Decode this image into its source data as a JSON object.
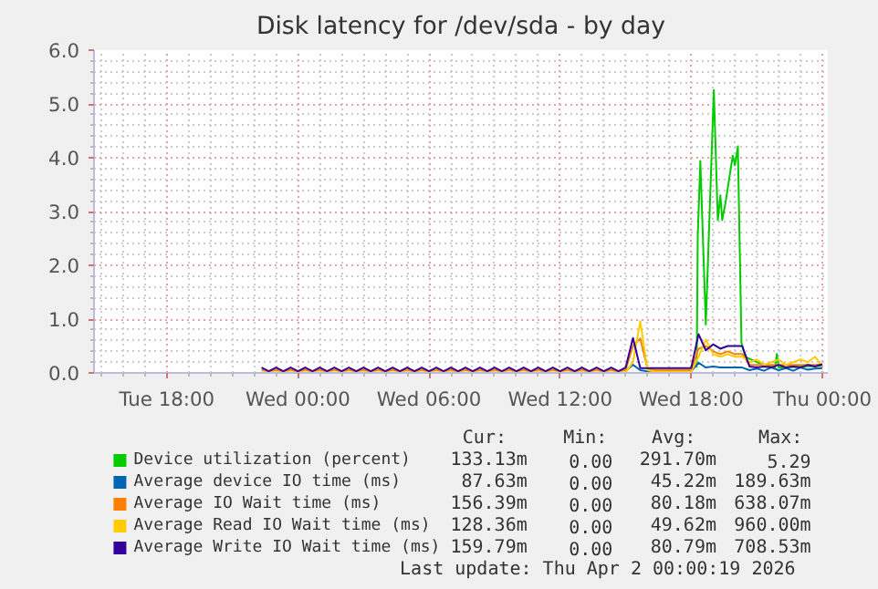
{
  "chart_data": {
    "type": "line",
    "title": "Disk latency for /dev/sda - by day",
    "xlim": [
      "2026-03-31T14:40",
      "2026-04-02T00:15"
    ],
    "xticks": [
      {
        "value": "2026-03-31T18:00",
        "label": "Tue 18:00"
      },
      {
        "value": "2026-04-01T00:00",
        "label": "Wed 00:00"
      },
      {
        "value": "2026-04-01T06:00",
        "label": "Wed 06:00"
      },
      {
        "value": "2026-04-01T12:00",
        "label": "Wed 12:00"
      },
      {
        "value": "2026-04-01T18:00",
        "label": "Wed 18:00"
      },
      {
        "value": "2026-04-02T00:00",
        "label": "Thu 00:00"
      }
    ],
    "ylim": [
      0,
      6
    ],
    "yticks": [
      {
        "value": 0,
        "label": "0.0"
      },
      {
        "value": 1,
        "label": "1.0"
      },
      {
        "value": 2,
        "label": "2.0"
      },
      {
        "value": 3,
        "label": "3.0"
      },
      {
        "value": 4,
        "label": "4.0"
      },
      {
        "value": 5,
        "label": "5.0"
      },
      {
        "value": 6,
        "label": "6.0"
      }
    ],
    "grid": true,
    "legend": "bottom",
    "x": [
      "2026-03-31T22:20",
      "2026-03-31T22:40",
      "2026-03-31T23:00",
      "2026-03-31T23:20",
      "2026-03-31T23:40",
      "2026-04-01T00:00",
      "2026-04-01T00:20",
      "2026-04-01T00:40",
      "2026-04-01T01:00",
      "2026-04-01T01:20",
      "2026-04-01T01:40",
      "2026-04-01T02:00",
      "2026-04-01T02:20",
      "2026-04-01T02:40",
      "2026-04-01T03:00",
      "2026-04-01T03:20",
      "2026-04-01T03:40",
      "2026-04-01T04:00",
      "2026-04-01T04:20",
      "2026-04-01T04:40",
      "2026-04-01T05:00",
      "2026-04-01T05:20",
      "2026-04-01T05:40",
      "2026-04-01T06:00",
      "2026-04-01T06:20",
      "2026-04-01T06:40",
      "2026-04-01T07:00",
      "2026-04-01T07:20",
      "2026-04-01T07:40",
      "2026-04-01T08:00",
      "2026-04-01T08:20",
      "2026-04-01T08:40",
      "2026-04-01T09:00",
      "2026-04-01T09:20",
      "2026-04-01T09:40",
      "2026-04-01T10:00",
      "2026-04-01T10:20",
      "2026-04-01T10:40",
      "2026-04-01T11:00",
      "2026-04-01T11:20",
      "2026-04-01T11:40",
      "2026-04-01T12:00",
      "2026-04-01T12:20",
      "2026-04-01T12:40",
      "2026-04-01T13:00",
      "2026-04-01T13:20",
      "2026-04-01T13:40",
      "2026-04-01T14:00",
      "2026-04-01T14:20",
      "2026-04-01T14:40",
      "2026-04-01T15:00",
      "2026-04-01T15:20",
      "2026-04-01T15:40",
      "2026-04-01T16:00",
      "2026-04-01T16:20",
      "2026-04-01T16:40",
      "2026-04-01T17:00",
      "2026-04-01T17:20",
      "2026-04-01T17:40",
      "2026-04-01T18:00",
      "2026-04-01T18:20",
      "2026-04-01T18:40",
      "2026-04-01T19:00",
      "2026-04-01T19:20",
      "2026-04-01T19:40",
      "2026-04-01T20:00",
      "2026-04-01T20:20",
      "2026-04-01T20:40",
      "2026-04-01T21:00",
      "2026-04-01T21:20",
      "2026-04-01T21:40",
      "2026-04-01T22:00",
      "2026-04-01T22:20",
      "2026-04-01T22:40",
      "2026-04-01T23:00",
      "2026-04-01T23:20",
      "2026-04-01T23:40",
      "2026-04-02T00:00"
    ],
    "series": [
      {
        "name": "Device utilization (percent)",
        "color": "#00cc00",
        "x": [
          "2026-04-01T18:15",
          "2026-04-01T18:18",
          "2026-04-01T18:25",
          "2026-04-01T18:40",
          "2026-04-01T19:02",
          "2026-04-01T19:13",
          "2026-04-01T19:20",
          "2026-04-01T19:25",
          "2026-04-01T19:35",
          "2026-04-01T19:54",
          "2026-04-01T20:00",
          "2026-04-01T20:08",
          "2026-04-01T20:18",
          "2026-04-01T20:28",
          "2026-04-01T21:00",
          "2026-04-01T21:50",
          "2026-04-01T21:55",
          "2026-04-01T22:00",
          "2026-04-01T23:00",
          "2026-04-02T00:00"
        ],
        "values": [
          0.1,
          2.57,
          3.94,
          0.9,
          5.26,
          2.84,
          3.3,
          2.84,
          3.2,
          4.04,
          3.86,
          4.21,
          0.56,
          0.3,
          0.2,
          0.1,
          0.35,
          0.1,
          0.12,
          0.13
        ]
      },
      {
        "name": "Average device IO time (ms)",
        "color": "#0066b3",
        "values": [
          null,
          null,
          null,
          null,
          null,
          null,
          null,
          null,
          null,
          null,
          null,
          null,
          null,
          null,
          null,
          null,
          null,
          null,
          null,
          null,
          null,
          null,
          null,
          null,
          null,
          null,
          null,
          null,
          null,
          null,
          null,
          null,
          null,
          null,
          null,
          null,
          null,
          null,
          null,
          null,
          null,
          null,
          null,
          null,
          null,
          null,
          null,
          null,
          null,
          null,
          0.04,
          0.15,
          0.05,
          0.03,
          0.03,
          0.03,
          0.03,
          0.03,
          0.03,
          0.03,
          0.19,
          0.1,
          0.12,
          0.1,
          0.1,
          0.1,
          0.1,
          0.05,
          0.08,
          0.04,
          0.1,
          0.05,
          0.09,
          0.04,
          0.1,
          0.06,
          0.08,
          0.09
        ]
      },
      {
        "name": "Average IO Wait time (ms)",
        "color": "#ff8000",
        "values": [
          0.06,
          0.02,
          0.06,
          0.02,
          0.06,
          0.02,
          0.06,
          0.02,
          0.06,
          0.02,
          0.06,
          0.02,
          0.06,
          0.02,
          0.06,
          0.02,
          0.06,
          0.02,
          0.06,
          0.02,
          0.06,
          0.02,
          0.06,
          0.02,
          0.06,
          0.02,
          0.06,
          0.02,
          0.06,
          0.02,
          0.06,
          0.02,
          0.06,
          0.02,
          0.06,
          0.02,
          0.06,
          0.02,
          0.06,
          0.02,
          0.06,
          0.02,
          0.06,
          0.02,
          0.06,
          0.02,
          0.06,
          0.02,
          0.06,
          0.02,
          0.06,
          0.5,
          0.64,
          0.08,
          0.05,
          0.05,
          0.05,
          0.05,
          0.05,
          0.05,
          0.45,
          0.5,
          0.4,
          0.35,
          0.4,
          0.35,
          0.35,
          0.15,
          0.15,
          0.15,
          0.15,
          0.15,
          0.15,
          0.15,
          0.15,
          0.15,
          0.15,
          0.16
        ]
      },
      {
        "name": "Average Read IO Wait time (ms)",
        "color": "#ffcc00",
        "values": [
          0.01,
          0.01,
          0.01,
          0.01,
          0.01,
          0.01,
          0.01,
          0.01,
          0.01,
          0.01,
          0.01,
          0.01,
          0.01,
          0.01,
          0.01,
          0.01,
          0.01,
          0.01,
          0.01,
          0.01,
          0.01,
          0.01,
          0.01,
          0.01,
          0.01,
          0.01,
          0.01,
          0.01,
          0.01,
          0.01,
          0.01,
          0.01,
          0.01,
          0.01,
          0.01,
          0.01,
          0.01,
          0.01,
          0.01,
          0.01,
          0.01,
          0.01,
          0.01,
          0.01,
          0.01,
          0.01,
          0.01,
          0.01,
          0.01,
          0.01,
          0.01,
          0.2,
          0.96,
          0.05,
          0.02,
          0.02,
          0.02,
          0.02,
          0.02,
          0.02,
          0.3,
          0.62,
          0.35,
          0.3,
          0.35,
          0.3,
          0.3,
          0.2,
          0.25,
          0.15,
          0.2,
          0.25,
          0.15,
          0.2,
          0.25,
          0.2,
          0.3,
          0.13
        ]
      },
      {
        "name": "Average Write IO Wait time (ms)",
        "color": "#330099",
        "values": [
          0.1,
          0.03,
          0.1,
          0.03,
          0.1,
          0.03,
          0.1,
          0.03,
          0.1,
          0.03,
          0.1,
          0.03,
          0.1,
          0.03,
          0.1,
          0.03,
          0.1,
          0.03,
          0.1,
          0.03,
          0.1,
          0.03,
          0.1,
          0.03,
          0.1,
          0.03,
          0.1,
          0.03,
          0.1,
          0.03,
          0.1,
          0.03,
          0.1,
          0.03,
          0.1,
          0.03,
          0.1,
          0.03,
          0.1,
          0.03,
          0.1,
          0.03,
          0.1,
          0.03,
          0.1,
          0.03,
          0.1,
          0.03,
          0.1,
          0.03,
          0.1,
          0.65,
          0.09,
          0.09,
          0.09,
          0.09,
          0.09,
          0.09,
          0.09,
          0.09,
          0.72,
          0.42,
          0.53,
          0.45,
          0.5,
          0.5,
          0.5,
          0.12,
          0.1,
          0.12,
          0.1,
          0.15,
          0.1,
          0.12,
          0.1,
          0.15,
          0.12,
          0.16
        ]
      }
    ],
    "annotations": [
      "Cur: Min: Avg: Max:",
      "133.13m 0.00 291.70m 5.29",
      "87.63m 0.00 45.22m 189.63m",
      "156.39m 0.00 80.18m 638.07m",
      "128.36m 0.00 49.62m 960.00m",
      "159.79m 0.00 80.79m 708.53m",
      "Last update: Thu Apr  2 00:00:19 2026"
    ]
  }
}
